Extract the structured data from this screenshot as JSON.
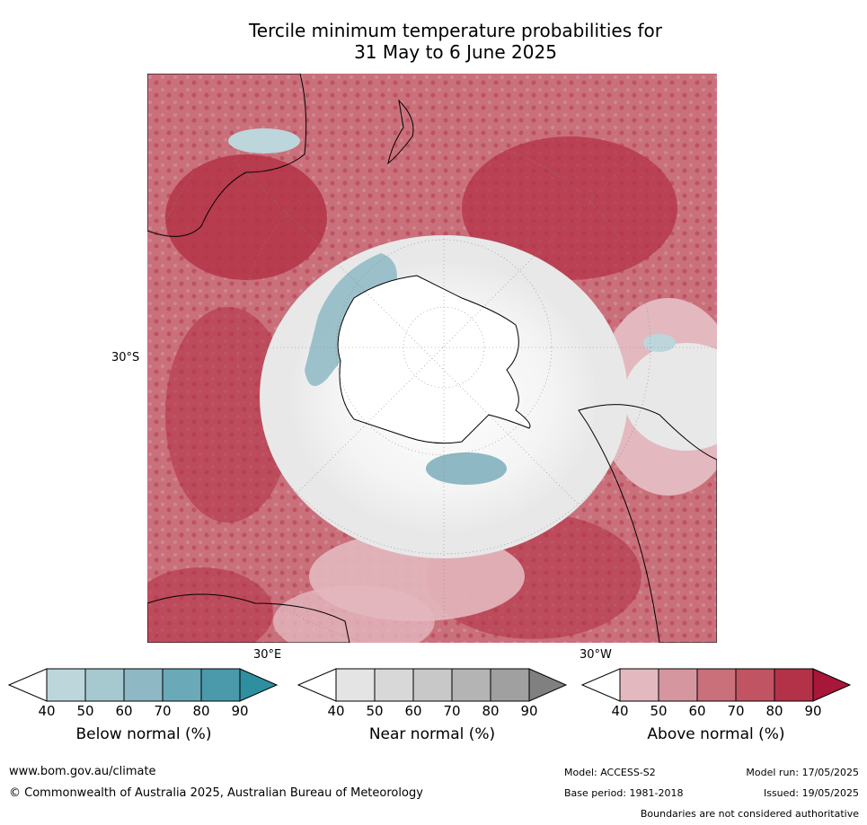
{
  "title": {
    "line1": "Tercile minimum temperature probabilities for",
    "line2": "31 May to 6 June 2025"
  },
  "map": {
    "lat_label": "30°S",
    "lon_labels": [
      "30°E",
      "30°W"
    ]
  },
  "colorbars": [
    {
      "label": "Below normal (%)",
      "ticks": [
        "40",
        "50",
        "60",
        "70",
        "80",
        "90"
      ],
      "colors": [
        "#ffffff",
        "#bcd6dc",
        "#a6c9d0",
        "#8db8c4",
        "#6aa9b7",
        "#4a9aab",
        "#2e8fa1"
      ]
    },
    {
      "label": "Near normal (%)",
      "ticks": [
        "40",
        "50",
        "60",
        "70",
        "80",
        "90"
      ],
      "colors": [
        "#ffffff",
        "#e4e4e4",
        "#d8d8d8",
        "#c8c8c8",
        "#b4b4b4",
        "#a0a0a0",
        "#808080"
      ]
    },
    {
      "label": "Above normal (%)",
      "ticks": [
        "40",
        "50",
        "60",
        "70",
        "80",
        "90"
      ],
      "colors": [
        "#ffffff",
        "#e3b8bf",
        "#d6969f",
        "#c9707b",
        "#c05462",
        "#b43247",
        "#a8163a"
      ]
    }
  ],
  "footer": {
    "url": "www.bom.gov.au/climate",
    "copyright": "© Commonwealth of Australia 2025, Australian Bureau of Meteorology",
    "model": "Model: ACCESS-S2",
    "base_period": "Base period: 1981-2018",
    "model_run": "Model run: 17/05/2025",
    "issued": "Issued: 19/05/2025",
    "disclaimer": "Boundaries are not considered authoritative"
  }
}
